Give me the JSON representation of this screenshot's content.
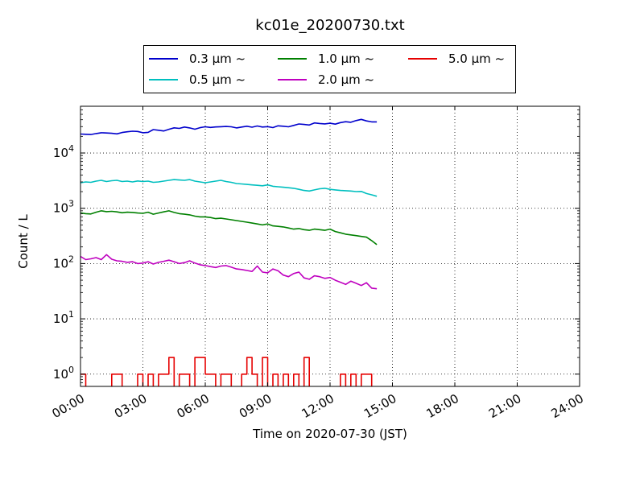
{
  "chart_data": {
    "type": "line",
    "title": "kc01e_20200730.txt",
    "xlabel": "Time on 2020-07-30 (JST)",
    "ylabel": "Count / L",
    "yscale": "log",
    "ylim": [
      0.6,
      70000
    ],
    "xlim": [
      "00:00",
      "24:00"
    ],
    "grid": true,
    "legend_position": "top-center",
    "x_ticks": [
      "00:00",
      "03:00",
      "06:00",
      "09:00",
      "12:00",
      "15:00",
      "18:00",
      "21:00",
      "24:00"
    ],
    "y_ticks": [
      {
        "value": 1,
        "label_base": "10",
        "label_exp": "0"
      },
      {
        "value": 10,
        "label_base": "10",
        "label_exp": "1"
      },
      {
        "value": 100,
        "label_base": "10",
        "label_exp": "2"
      },
      {
        "value": 1000,
        "label_base": "10",
        "label_exp": "3"
      },
      {
        "value": 10000,
        "label_base": "10",
        "label_exp": "4"
      }
    ],
    "x_hours": [
      0.0,
      0.25,
      0.5,
      0.75,
      1.0,
      1.25,
      1.5,
      1.75,
      2.0,
      2.25,
      2.5,
      2.75,
      3.0,
      3.25,
      3.5,
      3.75,
      4.0,
      4.25,
      4.5,
      4.75,
      5.0,
      5.25,
      5.5,
      5.75,
      6.0,
      6.25,
      6.5,
      6.75,
      7.0,
      7.25,
      7.5,
      7.75,
      8.0,
      8.25,
      8.5,
      8.75,
      9.0,
      9.25,
      9.5,
      9.75,
      10.0,
      10.25,
      10.5,
      10.75,
      11.0,
      11.25,
      11.5,
      11.75,
      12.0,
      12.25,
      12.5,
      12.75,
      13.0,
      13.25,
      13.5,
      13.75,
      14.0,
      14.25
    ],
    "series": [
      {
        "name": "0.3 μm ~",
        "color": "#0000cc",
        "values": [
          22000,
          21800,
          21600,
          22500,
          23200,
          23000,
          22700,
          22200,
          23500,
          24200,
          24800,
          24500,
          23200,
          23600,
          26500,
          25800,
          25000,
          26800,
          28500,
          27800,
          29500,
          28400,
          26900,
          28700,
          29800,
          29000,
          29600,
          29900,
          30200,
          29800,
          28400,
          29500,
          30500,
          29300,
          30800,
          29500,
          30000,
          28800,
          31000,
          30500,
          29800,
          31500,
          33500,
          32800,
          32000,
          35000,
          34200,
          33600,
          34500,
          33200,
          35500,
          36800,
          35900,
          38500,
          40500,
          38000,
          36500,
          36500
        ]
      },
      {
        "name": "0.5 μm ~",
        "color": "#00bfbf",
        "values": [
          2900,
          3000,
          2950,
          3100,
          3200,
          3050,
          3150,
          3200,
          3050,
          3100,
          3000,
          3120,
          3050,
          3100,
          2950,
          3000,
          3100,
          3200,
          3300,
          3250,
          3200,
          3300,
          3100,
          3000,
          2900,
          3000,
          3100,
          3200,
          3050,
          2950,
          2800,
          2750,
          2700,
          2650,
          2600,
          2550,
          2650,
          2500,
          2450,
          2400,
          2350,
          2300,
          2200,
          2100,
          2050,
          2150,
          2250,
          2300,
          2200,
          2150,
          2100,
          2080,
          2050,
          2000,
          2020,
          1850,
          1750,
          1650
        ]
      },
      {
        "name": "1.0 μm ~",
        "color": "#008000",
        "values": [
          820,
          800,
          790,
          850,
          900,
          870,
          880,
          860,
          830,
          850,
          840,
          820,
          810,
          850,
          780,
          820,
          860,
          900,
          840,
          800,
          780,
          760,
          720,
          700,
          700,
          680,
          650,
          660,
          640,
          620,
          600,
          580,
          560,
          540,
          520,
          500,
          520,
          480,
          470,
          460,
          440,
          420,
          430,
          410,
          400,
          420,
          410,
          400,
          420,
          380,
          360,
          340,
          330,
          320,
          310,
          300,
          260,
          220
        ]
      },
      {
        "name": "2.0 μm ~",
        "color": "#bf00bf",
        "values": [
          135,
          118,
          122,
          128,
          118,
          145,
          120,
          112,
          110,
          105,
          108,
          100,
          102,
          108,
          98,
          105,
          110,
          115,
          108,
          100,
          104,
          112,
          102,
          95,
          92,
          88,
          85,
          90,
          92,
          86,
          80,
          78,
          75,
          72,
          90,
          70,
          68,
          80,
          74,
          62,
          58,
          66,
          70,
          55,
          52,
          60,
          58,
          54,
          56,
          50,
          46,
          42,
          48,
          44,
          40,
          45,
          36,
          35
        ]
      },
      {
        "name": "5.0 μm ~",
        "color": "#e60000",
        "values": [
          1,
          0,
          0,
          0,
          0,
          0,
          1,
          1,
          0,
          0,
          0,
          1,
          0,
          1,
          0,
          1,
          1,
          2,
          0,
          1,
          1,
          0,
          2,
          2,
          1,
          1,
          0,
          1,
          1,
          0,
          0,
          1,
          2,
          1,
          0,
          2,
          0,
          1,
          0,
          1,
          0,
          1,
          0,
          2,
          0,
          0,
          0,
          0,
          0,
          0,
          1,
          0,
          1,
          0,
          1,
          1,
          0,
          0
        ]
      }
    ]
  }
}
